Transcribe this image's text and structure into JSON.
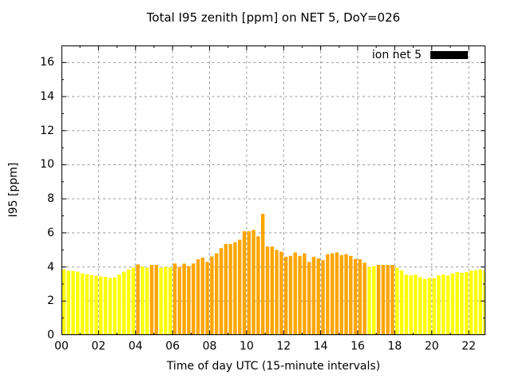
{
  "title": "Total I95 zenith [ppm] on NET 5, DoY=026",
  "legend": {
    "label": "ion net 5",
    "swatch_color": "#000000"
  },
  "colors": {
    "yellow": "#ffff00",
    "orange": "#ffa500",
    "grid": "#9a9a9a",
    "border": "#000000",
    "background": "#ffffff"
  },
  "chart_data": {
    "type": "bar",
    "title": "Total I95 zenith [ppm] on NET 5, DoY=026",
    "xlabel": "Time of day UTC (15-minute intervals)",
    "ylabel": "I95 [ppm]",
    "xlim": [
      0,
      22.9
    ],
    "ylim": [
      0,
      17
    ],
    "grid": true,
    "legend_position": "top-right",
    "legend_entries": [
      {
        "name": "ion net 5",
        "color": "#000000"
      }
    ],
    "x_tick_hours": [
      0,
      2,
      4,
      6,
      8,
      10,
      12,
      14,
      16,
      18,
      20,
      22
    ],
    "x_tick_labels": [
      "00",
      "02",
      "04",
      "06",
      "08",
      "10",
      "12",
      "14",
      "16",
      "18",
      "20",
      "22"
    ],
    "y_tick_values": [
      0,
      2,
      4,
      6,
      8,
      10,
      12,
      14,
      16
    ],
    "y_tick_labels": [
      "0",
      "2",
      "4",
      "6",
      "8",
      "10",
      "12",
      "14",
      "16"
    ],
    "start_hour": 0,
    "interval_minutes": 15,
    "values": [
      3.85,
      3.78,
      3.77,
      3.72,
      3.62,
      3.58,
      3.52,
      3.48,
      3.44,
      3.42,
      3.35,
      3.38,
      3.55,
      3.72,
      3.85,
      3.97,
      4.15,
      4.02,
      3.95,
      4.12,
      4.12,
      3.95,
      4.0,
      3.97,
      4.2,
      4.0,
      4.2,
      4.05,
      4.2,
      4.45,
      4.55,
      4.3,
      4.62,
      4.8,
      5.1,
      5.35,
      5.35,
      5.45,
      5.6,
      6.1,
      6.1,
      6.17,
      5.8,
      7.12,
      5.2,
      5.2,
      5.0,
      4.9,
      4.6,
      4.65,
      4.85,
      4.65,
      4.8,
      4.3,
      4.6,
      4.5,
      4.4,
      4.75,
      4.8,
      4.85,
      4.7,
      4.75,
      4.65,
      4.47,
      4.45,
      4.25,
      4.0,
      4.05,
      4.12,
      4.12,
      4.12,
      4.12,
      3.95,
      3.8,
      3.55,
      3.5,
      3.55,
      3.4,
      3.3,
      3.35,
      3.35,
      3.5,
      3.55,
      3.5,
      3.62,
      3.7,
      3.66,
      3.7,
      3.79,
      3.81,
      3.85,
      3.79
    ],
    "bar_colors": [
      "Y",
      "Y",
      "Y",
      "Y",
      "Y",
      "Y",
      "Y",
      "Y",
      "Y",
      "Y",
      "Y",
      "Y",
      "Y",
      "Y",
      "Y",
      "Y",
      "O",
      "Y",
      "Y",
      "O",
      "O",
      "Y",
      "Y",
      "Y",
      "O",
      "O",
      "O",
      "O",
      "O",
      "O",
      "O",
      "O",
      "O",
      "O",
      "O",
      "O",
      "O",
      "O",
      "O",
      "O",
      "O",
      "O",
      "O",
      "O",
      "O",
      "O",
      "O",
      "O",
      "O",
      "O",
      "O",
      "O",
      "O",
      "O",
      "O",
      "O",
      "O",
      "O",
      "O",
      "O",
      "O",
      "O",
      "O",
      "O",
      "O",
      "O",
      "Y",
      "Y",
      "O",
      "O",
      "O",
      "O",
      "Y",
      "Y",
      "Y",
      "Y",
      "Y",
      "Y",
      "Y",
      "Y",
      "Y",
      "Y",
      "Y",
      "Y",
      "Y",
      "Y",
      "Y",
      "Y",
      "Y",
      "Y",
      "Y",
      "Y"
    ]
  }
}
